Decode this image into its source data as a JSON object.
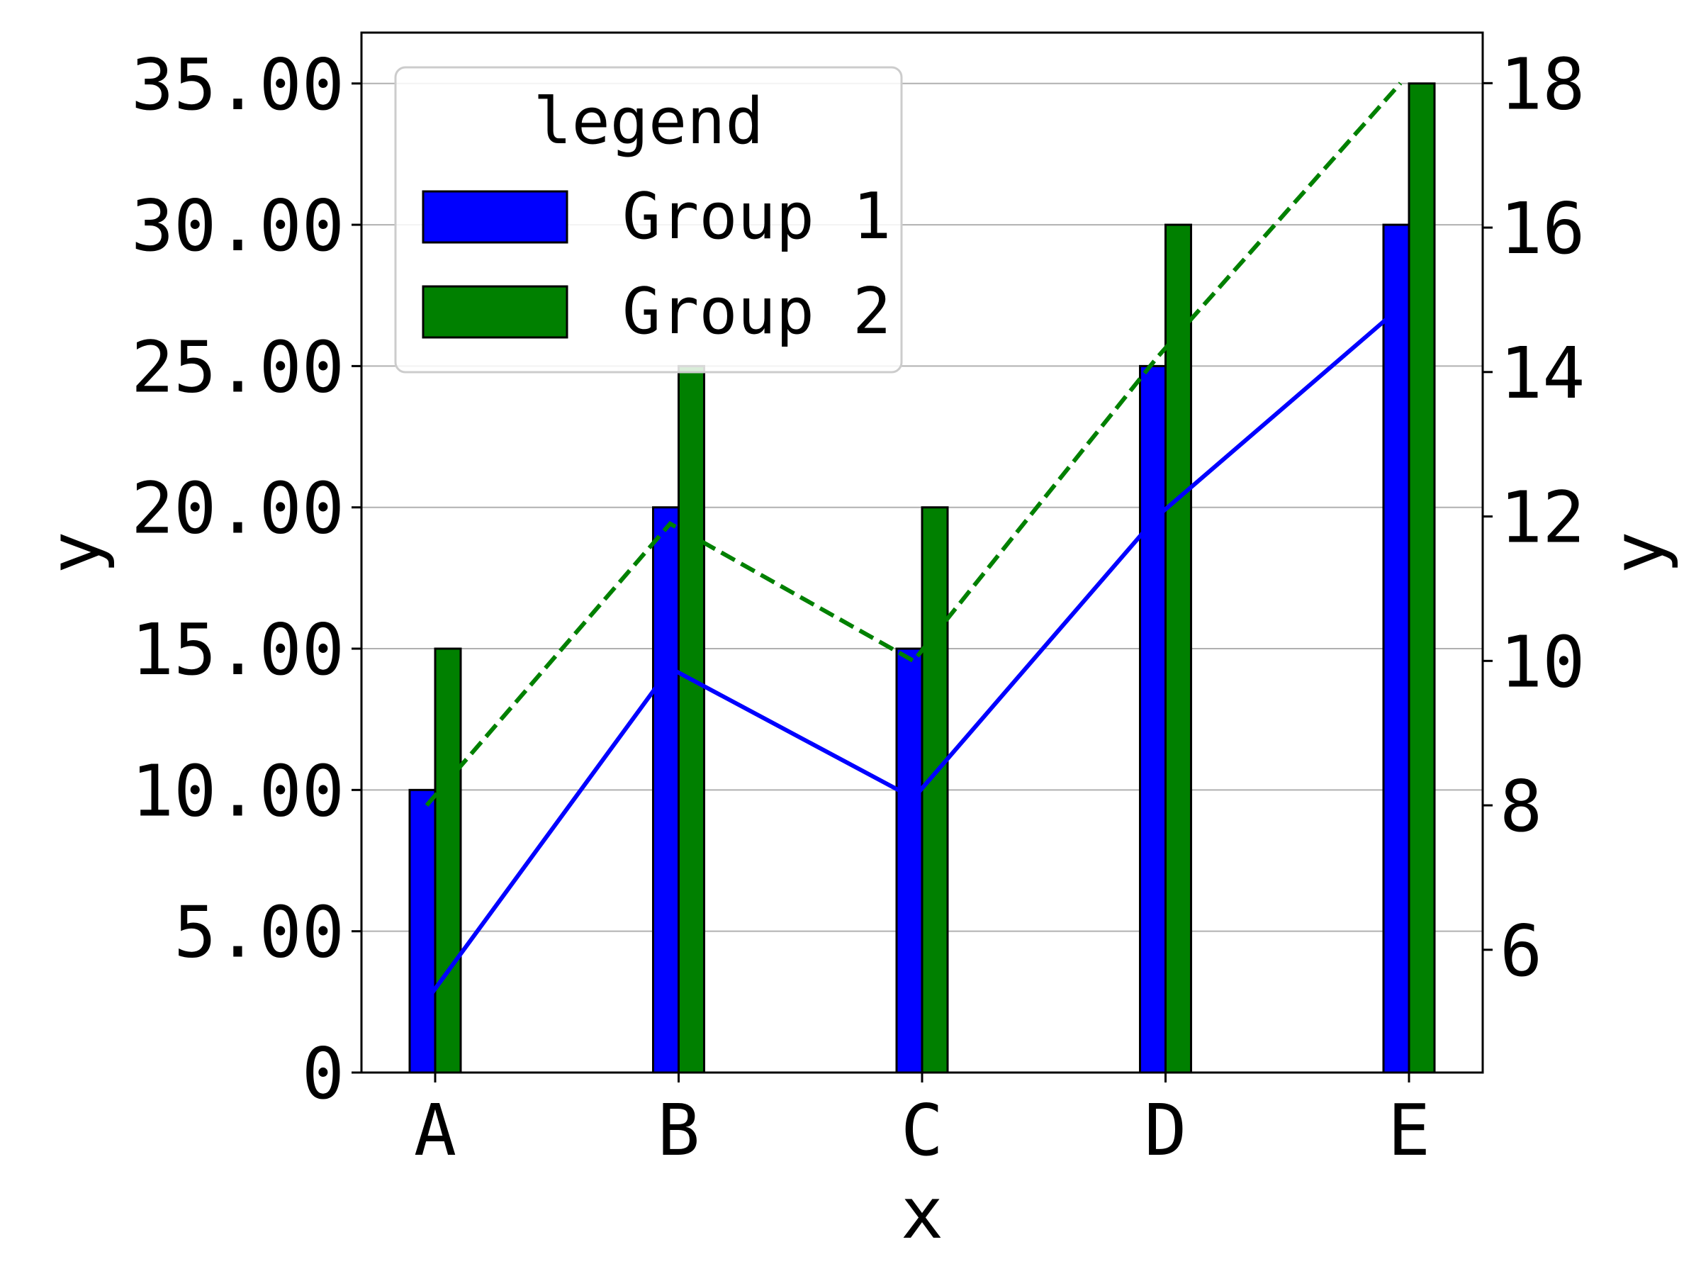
{
  "chart_data": {
    "type": "bar",
    "categories": [
      "A",
      "B",
      "C",
      "D",
      "E"
    ],
    "xlabel": "x",
    "ylabel": "y",
    "y2label": "y",
    "ylim": [
      0,
      36.8
    ],
    "y2lim": [
      4.3,
      18.7
    ],
    "yticks": [
      "0",
      "5.00",
      "10.00",
      "15.00",
      "20.00",
      "25.00",
      "30.00",
      "35.00"
    ],
    "y2ticks": [
      "6",
      "8",
      "10",
      "12",
      "14",
      "16",
      "18"
    ],
    "grid": "horizontal",
    "legend": {
      "title": "legend",
      "placement": "top-left"
    },
    "series": [
      {
        "name": "Group 1",
        "kind": "bar",
        "axis": "left",
        "color": "#0000ff",
        "values": [
          10,
          20,
          15,
          25,
          30
        ]
      },
      {
        "name": "Group 2",
        "kind": "bar",
        "axis": "left",
        "color": "#008000",
        "values": [
          15,
          25,
          20,
          30,
          35
        ]
      },
      {
        "kind": "line",
        "axis": "right",
        "style": "solid",
        "color": "#0000ff",
        "values": [
          5.3,
          9.9,
          8.1,
          12.0,
          14.9
        ]
      },
      {
        "kind": "line",
        "axis": "right",
        "style": "dashed",
        "color": "#008000",
        "values": [
          8.0,
          11.9,
          10.0,
          14.2,
          18.0
        ]
      }
    ]
  }
}
